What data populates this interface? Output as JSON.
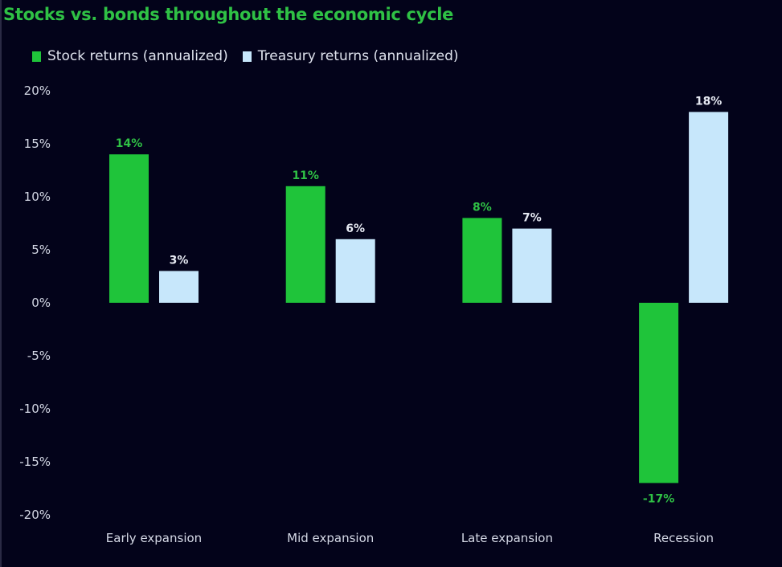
{
  "chart_data": {
    "type": "bar",
    "title": "Stocks vs. bonds throughout the economic cycle",
    "xlabel": "",
    "ylabel": "",
    "ylim": [
      -20,
      20
    ],
    "yticks": [
      20,
      15,
      10,
      5,
      0,
      -5,
      -10,
      -15,
      -20
    ],
    "ytick_labels": [
      "20%",
      "15%",
      "10%",
      "5%",
      "0%",
      "-5%",
      "-10%",
      "-15%",
      "-20%"
    ],
    "categories": [
      "Early expansion",
      "Mid expansion",
      "Late expansion",
      "Recession"
    ],
    "series": [
      {
        "name": "Stock returns (annualized)",
        "color": "#1fc43a",
        "label_color": "#2fc145",
        "values": [
          14,
          11,
          8,
          -17
        ],
        "data_labels": [
          "14%",
          "11%",
          "8%",
          "-17%"
        ]
      },
      {
        "name": "Treasury returns (annualized)",
        "color": "#c7e7fb",
        "label_color": "#e6e9f2",
        "values": [
          3,
          6,
          7,
          18
        ],
        "data_labels": [
          "3%",
          "6%",
          "7%",
          "18%"
        ]
      }
    ],
    "grid": false,
    "legend_position": "top-left"
  },
  "colors": {
    "background": "#03031a",
    "title": "#2fc145",
    "text": "#d5d9e6"
  }
}
